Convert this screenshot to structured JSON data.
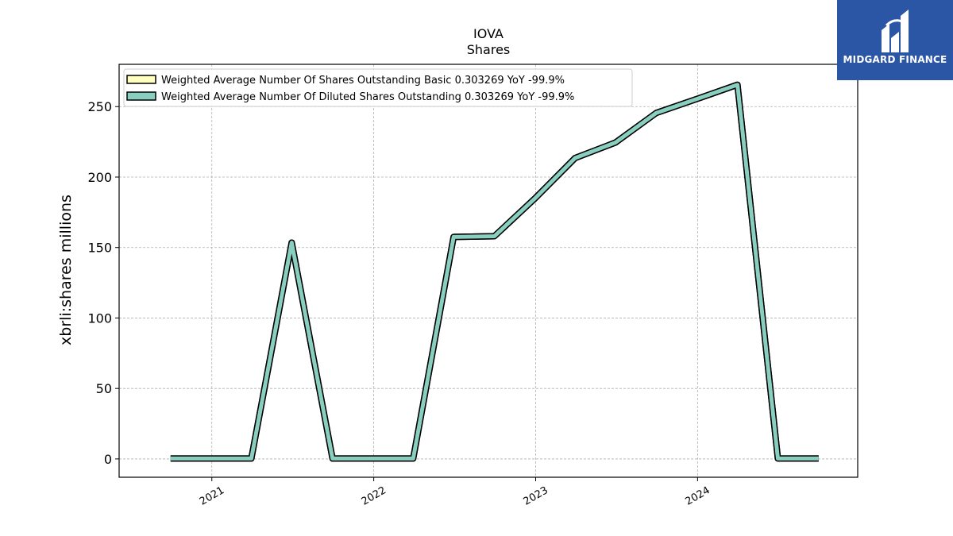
{
  "logo": {
    "text": "MIDGARD FINANCE",
    "color": "#2b56a6"
  },
  "chart_data": {
    "type": "line",
    "title": "IOVA",
    "subtitle": "Shares",
    "ylabel": "xbrli:shares millions",
    "xlabel": "",
    "ylim": [
      -13,
      280
    ],
    "xlim": [
      "2020-06-06",
      "2024-12-27"
    ],
    "yticks": [
      0,
      50,
      100,
      150,
      200,
      250
    ],
    "xticks": [
      "2021",
      "2022",
      "2023",
      "2024"
    ],
    "xtick_dates": [
      "2021-01-01",
      "2022-01-01",
      "2023-01-01",
      "2024-01-01"
    ],
    "grid": true,
    "legend_position": "upper-left",
    "series": [
      {
        "name": "Weighted Average Number Of Shares Outstanding Basic  0.303269 YoY -99.9%",
        "color": "#ffffc0",
        "x": [
          "2020-09-30",
          "2020-12-31",
          "2021-03-31",
          "2021-06-30",
          "2021-09-30",
          "2021-12-31",
          "2022-03-31",
          "2022-06-30",
          "2022-09-30",
          "2022-12-31",
          "2023-03-31",
          "2023-06-30",
          "2023-09-30",
          "2023-12-31",
          "2024-03-31",
          "2024-06-30",
          "2024-09-30"
        ],
        "y": [
          0.3,
          0.3,
          0.3,
          153.5,
          0.3,
          0.3,
          0.3,
          157.5,
          158.0,
          185.0,
          213.5,
          224.5,
          245.5,
          255.5,
          265.5,
          0.3,
          0.303269
        ]
      },
      {
        "name": "Weighted Average Number Of Diluted Shares Outstanding  0.303269 YoY -99.9%",
        "color": "#88cfc0",
        "x": [
          "2020-09-30",
          "2020-12-31",
          "2021-03-31",
          "2021-06-30",
          "2021-09-30",
          "2021-12-31",
          "2022-03-31",
          "2022-06-30",
          "2022-09-30",
          "2022-12-31",
          "2023-03-31",
          "2023-06-30",
          "2023-09-30",
          "2023-12-31",
          "2024-03-31",
          "2024-06-30",
          "2024-09-30"
        ],
        "y": [
          0.3,
          0.3,
          0.3,
          153.5,
          0.3,
          0.3,
          0.3,
          157.5,
          158.0,
          185.0,
          213.5,
          224.5,
          245.5,
          255.5,
          265.5,
          0.3,
          0.303269
        ]
      }
    ]
  }
}
